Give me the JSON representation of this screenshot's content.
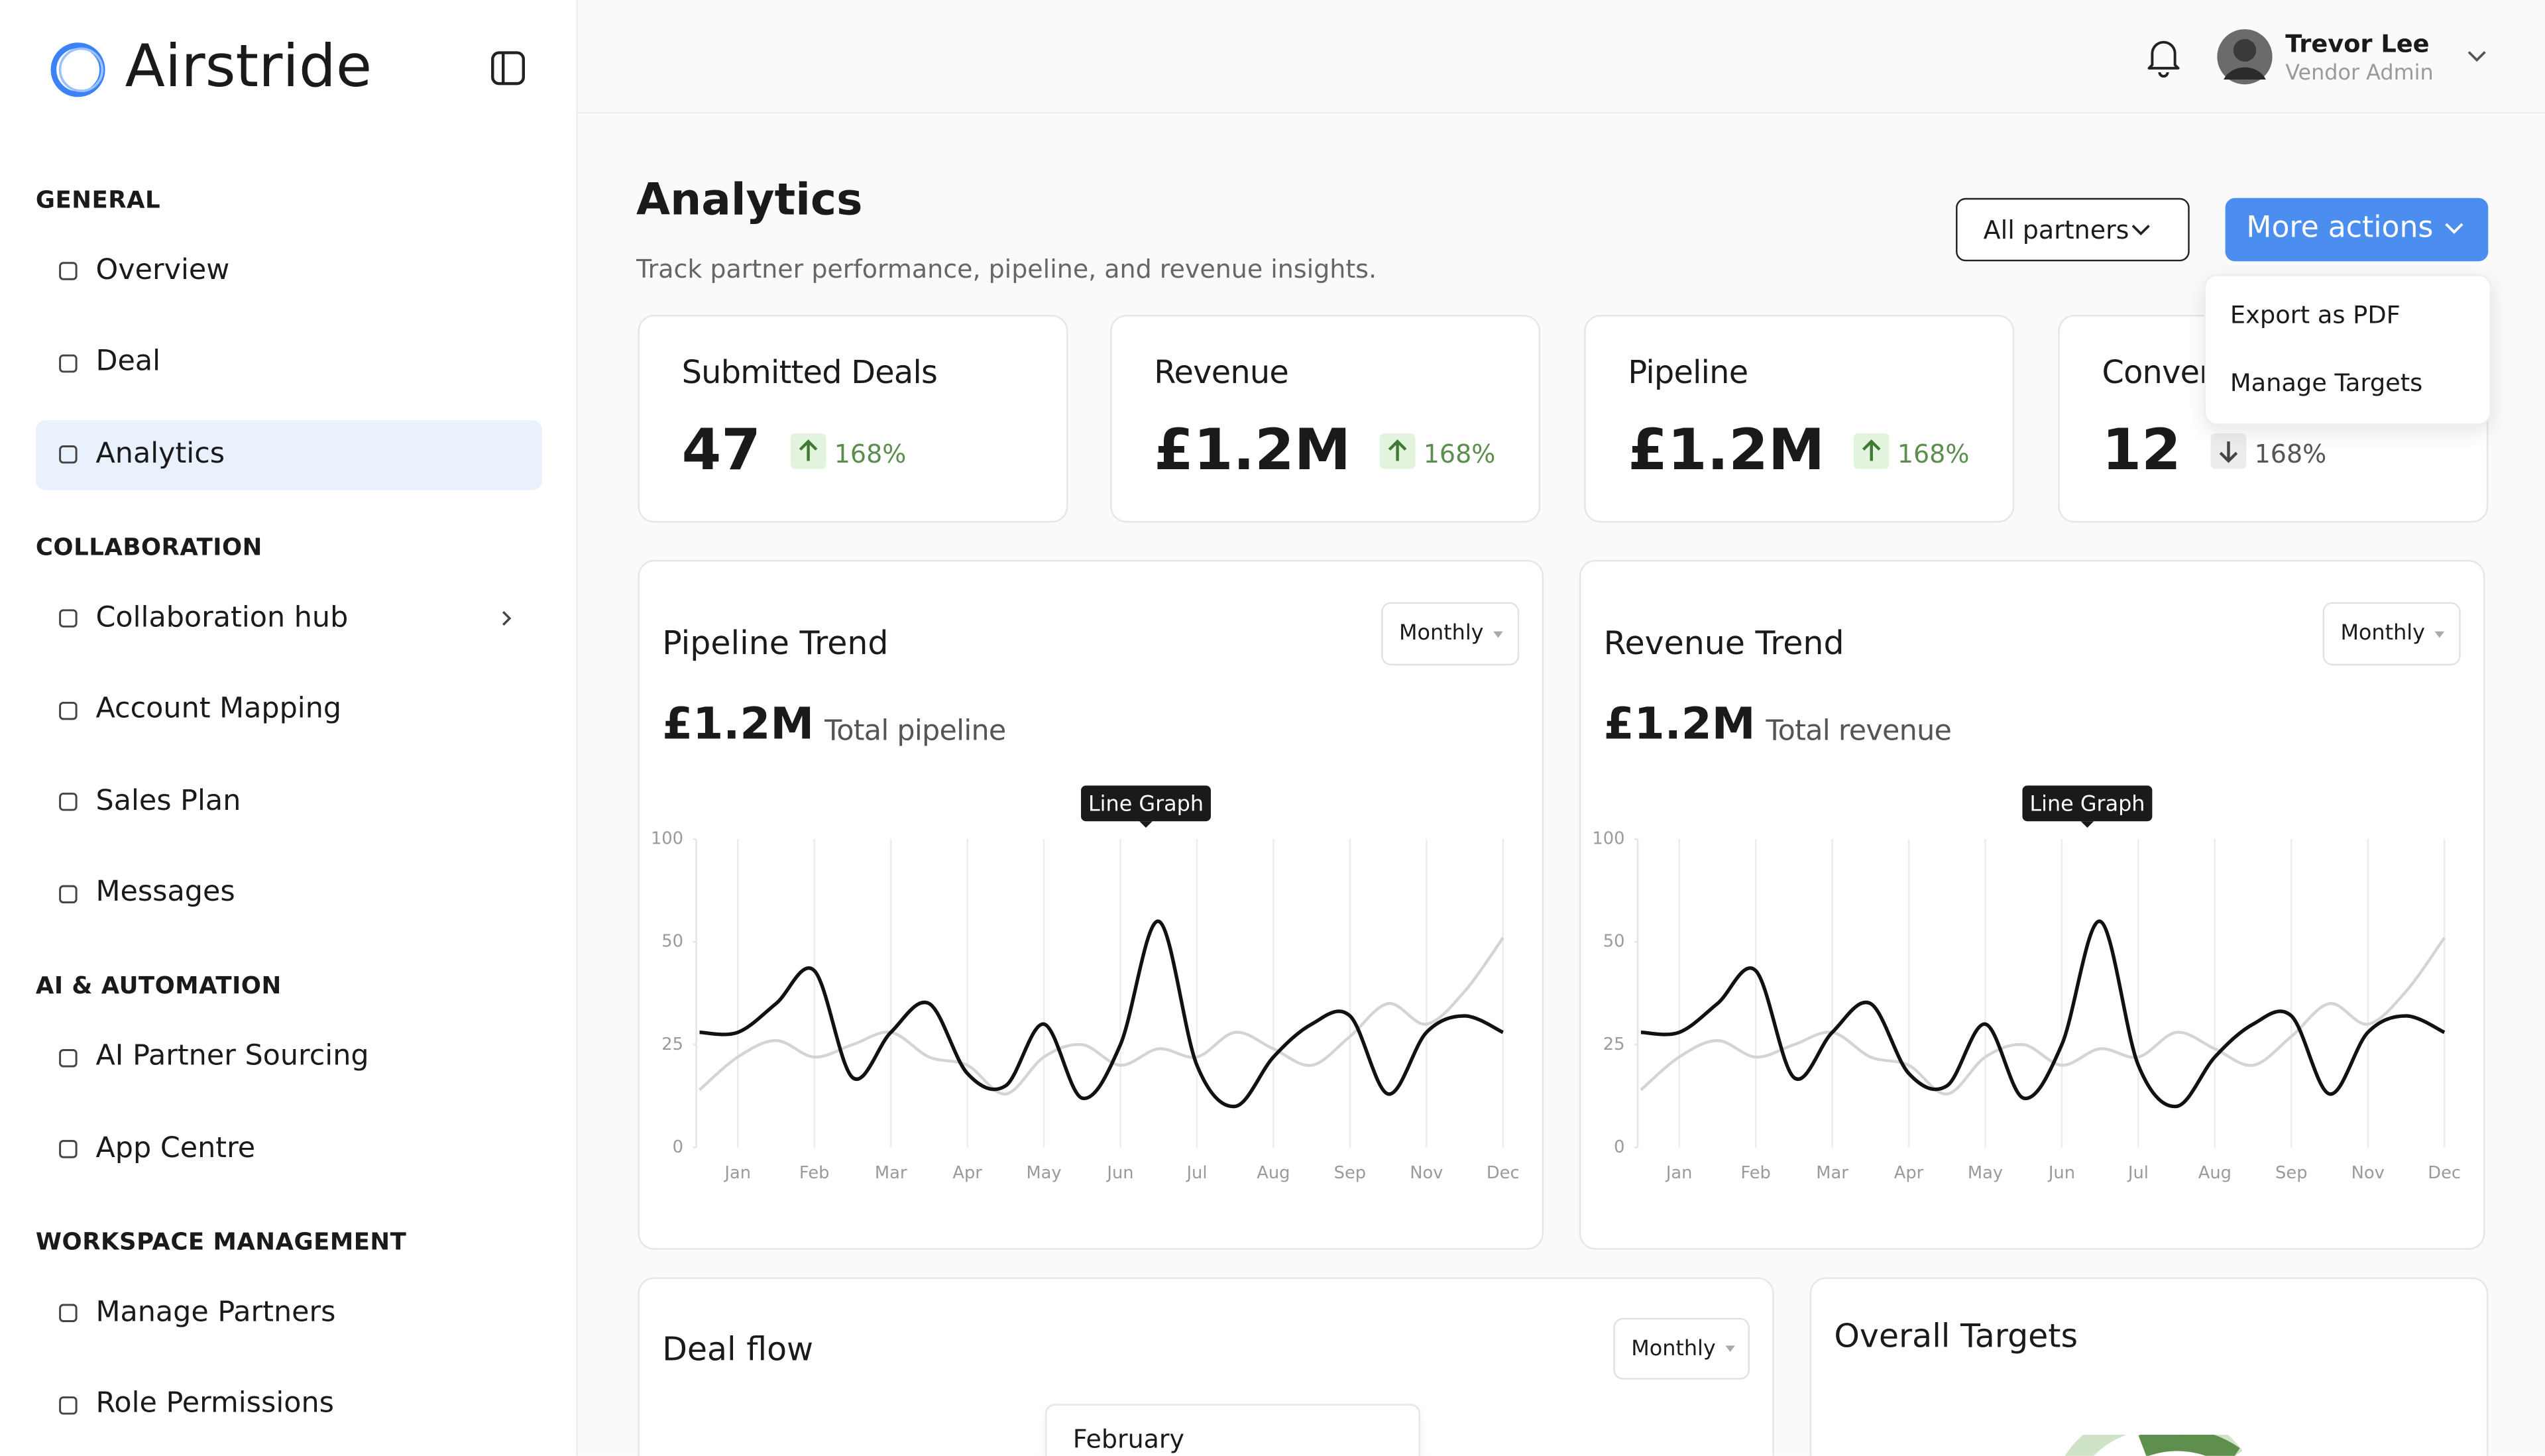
{
  "sidebar": {
    "brand": "Airstride",
    "sections": [
      {
        "title": "GENERAL",
        "items": [
          {
            "label": "Overview"
          },
          {
            "label": "Deal"
          },
          {
            "label": "Analytics",
            "active": true
          }
        ]
      },
      {
        "title": "COLLABORATION",
        "items": [
          {
            "label": "Collaboration hub",
            "expandable": true
          },
          {
            "label": "Account Mapping"
          },
          {
            "label": "Sales Plan"
          },
          {
            "label": "Messages"
          }
        ]
      },
      {
        "title": "AI & AUTOMATION",
        "items": [
          {
            "label": "AI Partner Sourcing"
          },
          {
            "label": "App Centre"
          }
        ]
      },
      {
        "title": "WORKSPACE MANAGEMENT",
        "items": [
          {
            "label": "Manage Partners"
          },
          {
            "label": "Role Permissions"
          }
        ]
      }
    ]
  },
  "header": {
    "user_name": "Trevor Lee",
    "user_role": "Vendor Admin"
  },
  "page": {
    "title": "Analytics",
    "subtitle": "Track partner performance, pipeline, and revenue insights.",
    "filter": "All partners",
    "actions": "More actions",
    "menu": [
      "Export as PDF",
      "Manage Targets"
    ]
  },
  "kpis": [
    {
      "label": "Submitted Deals",
      "value": "47",
      "change": "168%",
      "direction": "up"
    },
    {
      "label": "Revenue",
      "value": "£1.2M",
      "change": "168%",
      "direction": "up"
    },
    {
      "label": "Pipeline",
      "value": "£1.2M",
      "change": "168%",
      "direction": "up"
    },
    {
      "label": "Conversion",
      "value": "12",
      "change": "168%",
      "direction": "down"
    }
  ],
  "chart_data": [
    {
      "type": "line",
      "title": "Pipeline Trend",
      "total": "£1.2M",
      "total_label": "Total pipeline",
      "period": "Monthly",
      "tooltip": "Line Graph",
      "categories": [
        null,
        "Jan",
        null,
        "Feb",
        null,
        "Mar",
        null,
        "Apr",
        null,
        "May",
        null,
        "Jun",
        null,
        "Jul",
        null,
        "Aug",
        null,
        "Sep",
        null,
        "Nov",
        null,
        "Dec"
      ],
      "ylim": [
        0,
        100
      ],
      "yticks": [
        0,
        25,
        50,
        100
      ],
      "series": [
        {
          "color": "#d4d4d4",
          "values": [
            14,
            22,
            26,
            22,
            25,
            28,
            22,
            20,
            13,
            22,
            25,
            20,
            24,
            22,
            28,
            24,
            20,
            27,
            35,
            30,
            38,
            52
          ]
        },
        {
          "color": "#111111",
          "values": [
            28,
            28,
            35,
            43,
            17,
            28,
            35,
            18,
            15,
            30,
            12,
            25,
            60,
            20,
            10,
            22,
            30,
            32,
            13,
            28,
            32,
            28
          ]
        }
      ]
    },
    {
      "type": "line",
      "title": "Revenue Trend",
      "total": "£1.2M",
      "total_label": "Total revenue",
      "period": "Monthly",
      "tooltip": "Line Graph",
      "categories": [
        null,
        "Jan",
        null,
        "Feb",
        null,
        "Mar",
        null,
        "Apr",
        null,
        "May",
        null,
        "Jun",
        null,
        "Jul",
        null,
        "Aug",
        null,
        "Sep",
        null,
        "Nov",
        null,
        "Dec"
      ],
      "ylim": [
        0,
        100
      ],
      "yticks": [
        0,
        25,
        50,
        100
      ],
      "series": [
        {
          "color": "#d4d4d4",
          "values": [
            14,
            22,
            26,
            22,
            25,
            28,
            22,
            20,
            13,
            22,
            25,
            20,
            24,
            22,
            28,
            24,
            20,
            27,
            35,
            30,
            38,
            52
          ]
        },
        {
          "color": "#111111",
          "values": [
            28,
            28,
            35,
            43,
            17,
            28,
            35,
            18,
            15,
            30,
            12,
            25,
            60,
            20,
            10,
            22,
            30,
            32,
            13,
            28,
            32,
            28
          ]
        }
      ]
    }
  ],
  "deal_flow": {
    "title": "Deal flow",
    "period": "Monthly",
    "tooltip": "February"
  },
  "targets": {
    "title": "Overall Targets"
  }
}
